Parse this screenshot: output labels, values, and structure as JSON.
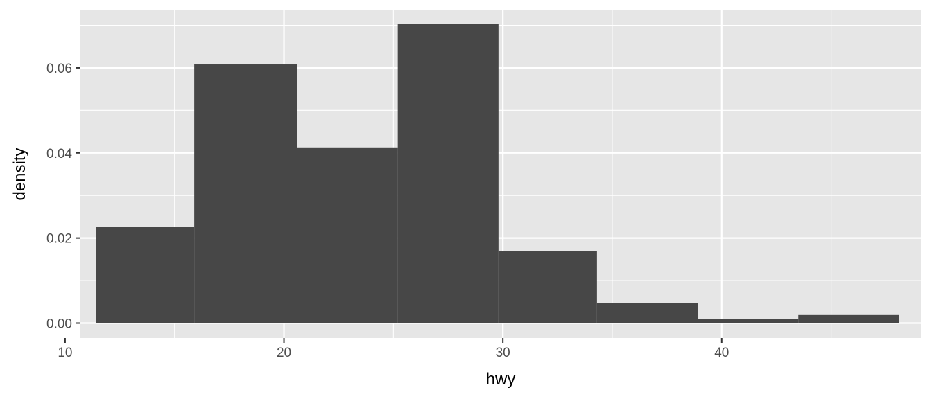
{
  "chart_data": {
    "type": "bar",
    "title": "",
    "xlabel": "hwy",
    "ylabel": "density",
    "xlim": [
      10.7,
      49.1
    ],
    "ylim": [
      -0.0035,
      0.0735
    ],
    "grid": true,
    "x_ticks": [
      10,
      20,
      30,
      40
    ],
    "x_tick_labels": [
      "10",
      "20",
      "30",
      "40"
    ],
    "y_ticks": [
      0.0,
      0.02,
      0.04,
      0.06
    ],
    "y_tick_labels": [
      "0.00",
      "0.02",
      "0.04",
      "0.06"
    ],
    "bins": [
      {
        "x0": 11.4,
        "x1": 15.9,
        "value": 0.0226
      },
      {
        "x0": 15.9,
        "x1": 20.6,
        "value": 0.0608
      },
      {
        "x0": 20.6,
        "x1": 25.2,
        "value": 0.0413
      },
      {
        "x0": 25.2,
        "x1": 29.8,
        "value": 0.0703
      },
      {
        "x0": 29.8,
        "x1": 34.3,
        "value": 0.0169
      },
      {
        "x0": 34.3,
        "x1": 38.9,
        "value": 0.0047
      },
      {
        "x0": 38.9,
        "x1": 43.5,
        "value": 0.0009
      },
      {
        "x0": 43.5,
        "x1": 48.1,
        "value": 0.0019
      }
    ],
    "colors": {
      "panel": "#e6e6e6",
      "grid": "#ffffff",
      "bar": "#474747",
      "tick": "#333333"
    }
  }
}
